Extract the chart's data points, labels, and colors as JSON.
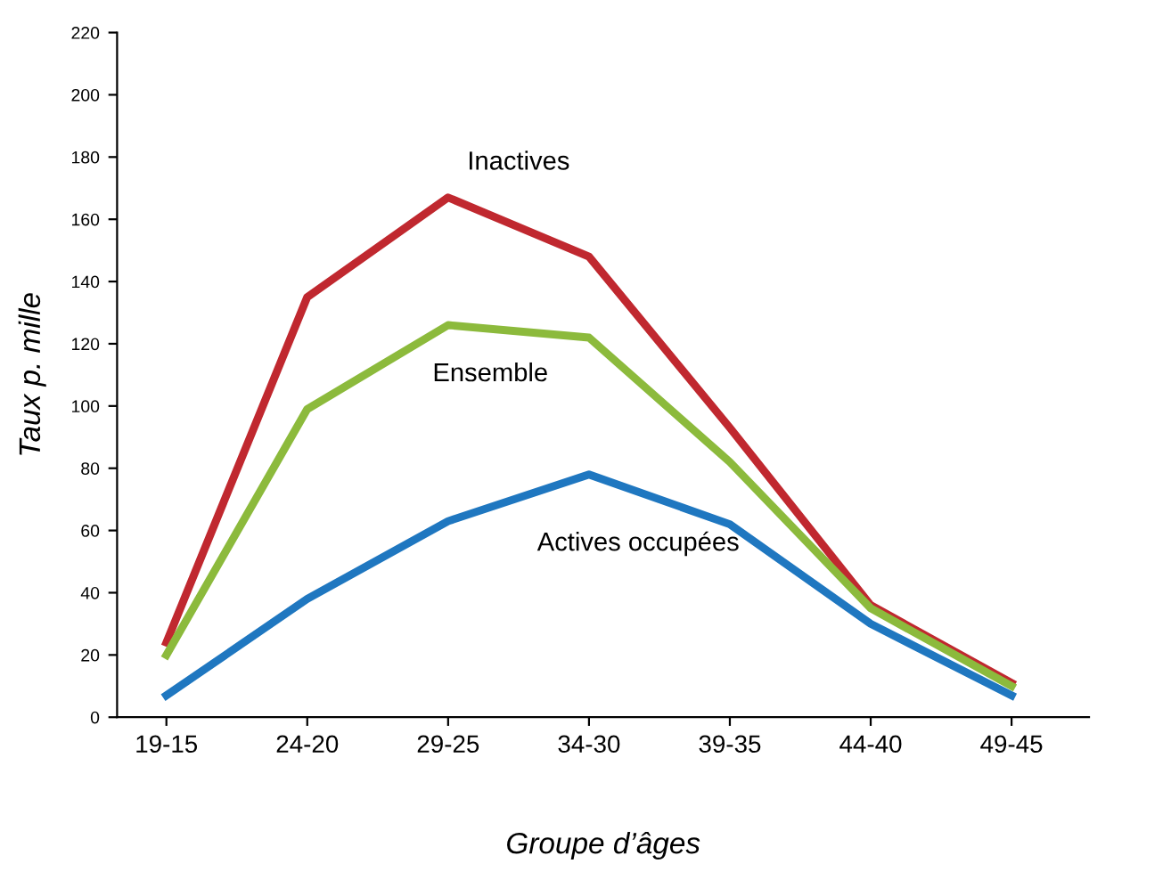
{
  "chart_data": {
    "type": "line",
    "xlabel": "Groupe d’âges",
    "ylabel": "Taux p. mille",
    "categories": [
      "19-15",
      "24-20",
      "29-25",
      "34-30",
      "39-35",
      "44-40",
      "49-45"
    ],
    "series": [
      {
        "name": "Inactives",
        "color": "#c0282f",
        "values": [
          24,
          135,
          167,
          148,
          93,
          36,
          11
        ]
      },
      {
        "name": "Ensemble",
        "color": "#8cba3c",
        "values": [
          20,
          99,
          126,
          122,
          82,
          35,
          10
        ]
      },
      {
        "name": "Actives occupées",
        "color": "#1f77c0",
        "values": [
          7,
          38,
          63,
          78,
          62,
          30,
          7
        ]
      }
    ],
    "ylim": [
      0,
      220
    ],
    "yticks": [
      0,
      20,
      40,
      60,
      80,
      100,
      120,
      140,
      160,
      180,
      200,
      220
    ],
    "grid": false,
    "legend": false,
    "marker": "none",
    "line_style": "solid"
  }
}
